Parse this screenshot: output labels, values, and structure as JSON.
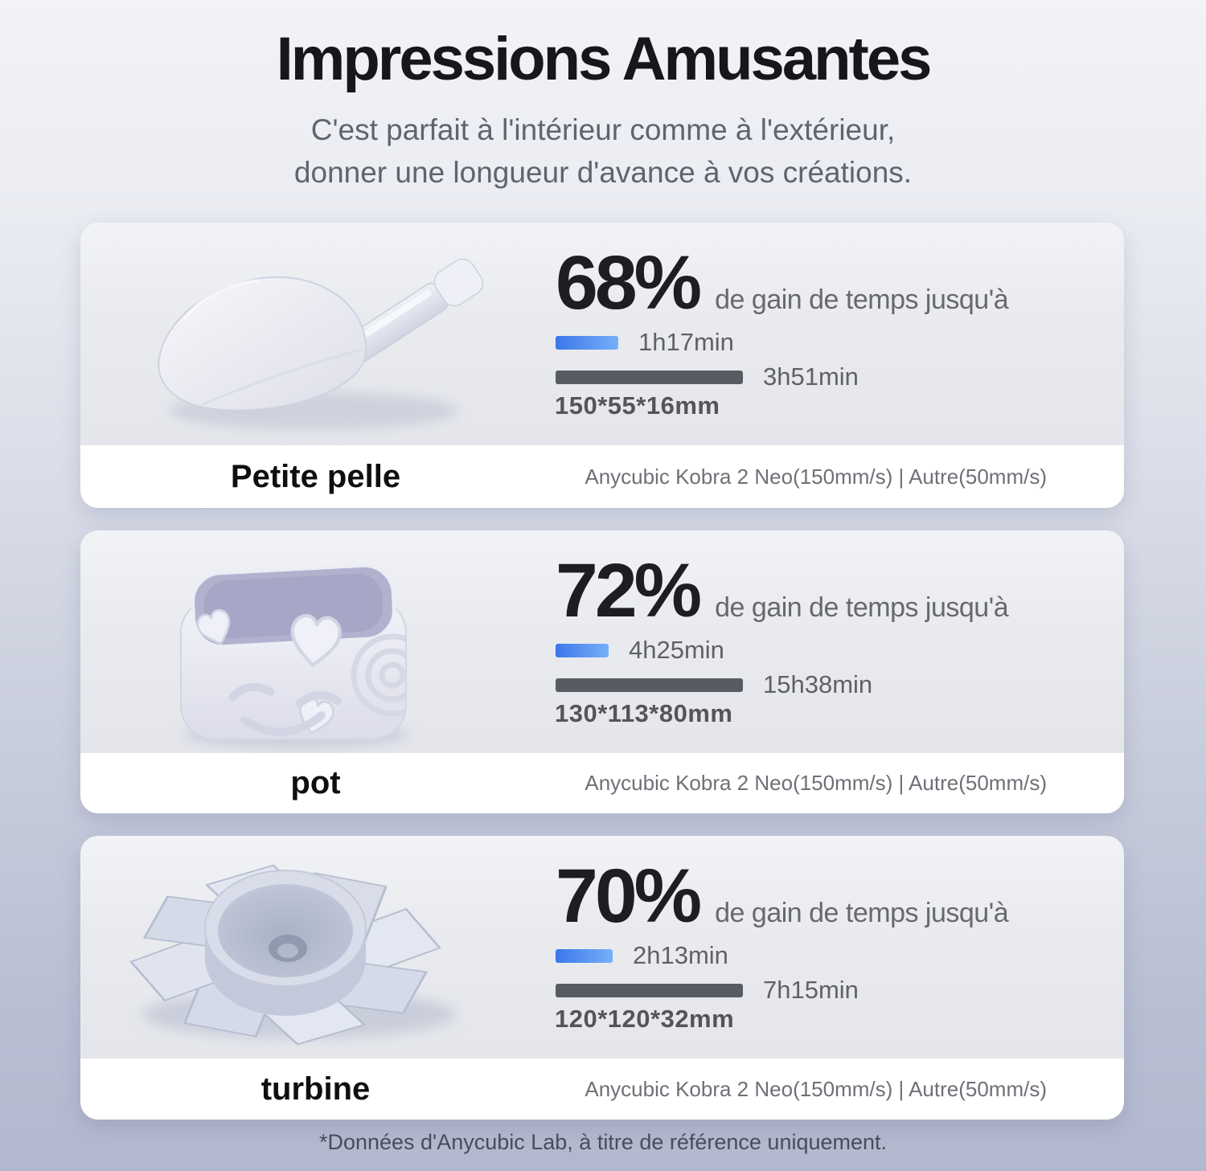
{
  "page": {
    "title": "Impressions Amusantes",
    "subtitle_line1": "C'est parfait à l'intérieur comme à l'extérieur,",
    "subtitle_line2": "donner une longueur d'avance à vos créations.",
    "footnote": "*Données d'Anycubic Lab, à titre de référence uniquement."
  },
  "colors": {
    "background_top": "#f2f3f8",
    "background_bottom": "#b3b8ce",
    "card_top_bg": "#e9ebef",
    "card_bottom_bg": "#ffffff",
    "fast_bar_gradient_start": "#3d76ea",
    "fast_bar_gradient_end": "#74b0f8",
    "slow_bar_gray": "#575b62",
    "percent_text": "#1d1d22",
    "subtitle_text": "#62646d"
  },
  "cards": [
    {
      "object_name": "Petite pelle",
      "object_image": "shovel",
      "percent": "68%",
      "gain_label": "de gain de temps jusqu'à",
      "fast_time": "1h17min",
      "fast_minutes": 77,
      "slow_time": "3h51min",
      "slow_minutes": 231,
      "dimensions": "150*55*16mm",
      "comparison": "Anycubic Kobra 2 Neo(150mm/s) | Autre(50mm/s)"
    },
    {
      "object_name": "pot",
      "object_image": "smiley-pot",
      "percent": "72%",
      "gain_label": "de gain de temps jusqu'à",
      "fast_time": "4h25min",
      "fast_minutes": 265,
      "slow_time": "15h38min",
      "slow_minutes": 938,
      "dimensions": "130*113*80mm",
      "comparison": "Anycubic Kobra 2 Neo(150mm/s) | Autre(50mm/s)"
    },
    {
      "object_name": "turbine",
      "object_image": "turbine-impeller",
      "percent": "70%",
      "gain_label": "de gain de temps jusqu'à",
      "fast_time": "2h13min",
      "fast_minutes": 133,
      "slow_time": "7h15min",
      "slow_minutes": 435,
      "dimensions": "120*120*32mm",
      "comparison": "Anycubic Kobra 2 Neo(150mm/s) | Autre(50mm/s)"
    }
  ],
  "chart_data": [
    {
      "type": "bar",
      "orientation": "horizontal",
      "title": "Petite pelle — 68% de gain de temps jusqu'à",
      "categories": [
        "Anycubic Kobra 2 Neo(150mm/s)",
        "Autre(50mm/s)"
      ],
      "tick_labels": [
        "1h17min",
        "3h51min"
      ],
      "values_minutes": [
        77,
        231
      ],
      "dimensions": "150*55*16mm",
      "colors": [
        "#3d76ea",
        "#575b62"
      ],
      "grid": false,
      "legend": "none"
    },
    {
      "type": "bar",
      "orientation": "horizontal",
      "title": "pot — 72% de gain de temps jusqu'à",
      "categories": [
        "Anycubic Kobra 2 Neo(150mm/s)",
        "Autre(50mm/s)"
      ],
      "tick_labels": [
        "4h25min",
        "15h38min"
      ],
      "values_minutes": [
        265,
        938
      ],
      "dimensions": "130*113*80mm",
      "colors": [
        "#3d76ea",
        "#575b62"
      ],
      "grid": false,
      "legend": "none"
    },
    {
      "type": "bar",
      "orientation": "horizontal",
      "title": "turbine — 70% de gain de temps jusqu'à",
      "categories": [
        "Anycubic Kobra 2 Neo(150mm/s)",
        "Autre(50mm/s)"
      ],
      "tick_labels": [
        "2h13min",
        "7h15min"
      ],
      "values_minutes": [
        133,
        435
      ],
      "dimensions": "120*120*32mm",
      "colors": [
        "#3d76ea",
        "#575b62"
      ],
      "grid": false,
      "legend": "none"
    }
  ]
}
